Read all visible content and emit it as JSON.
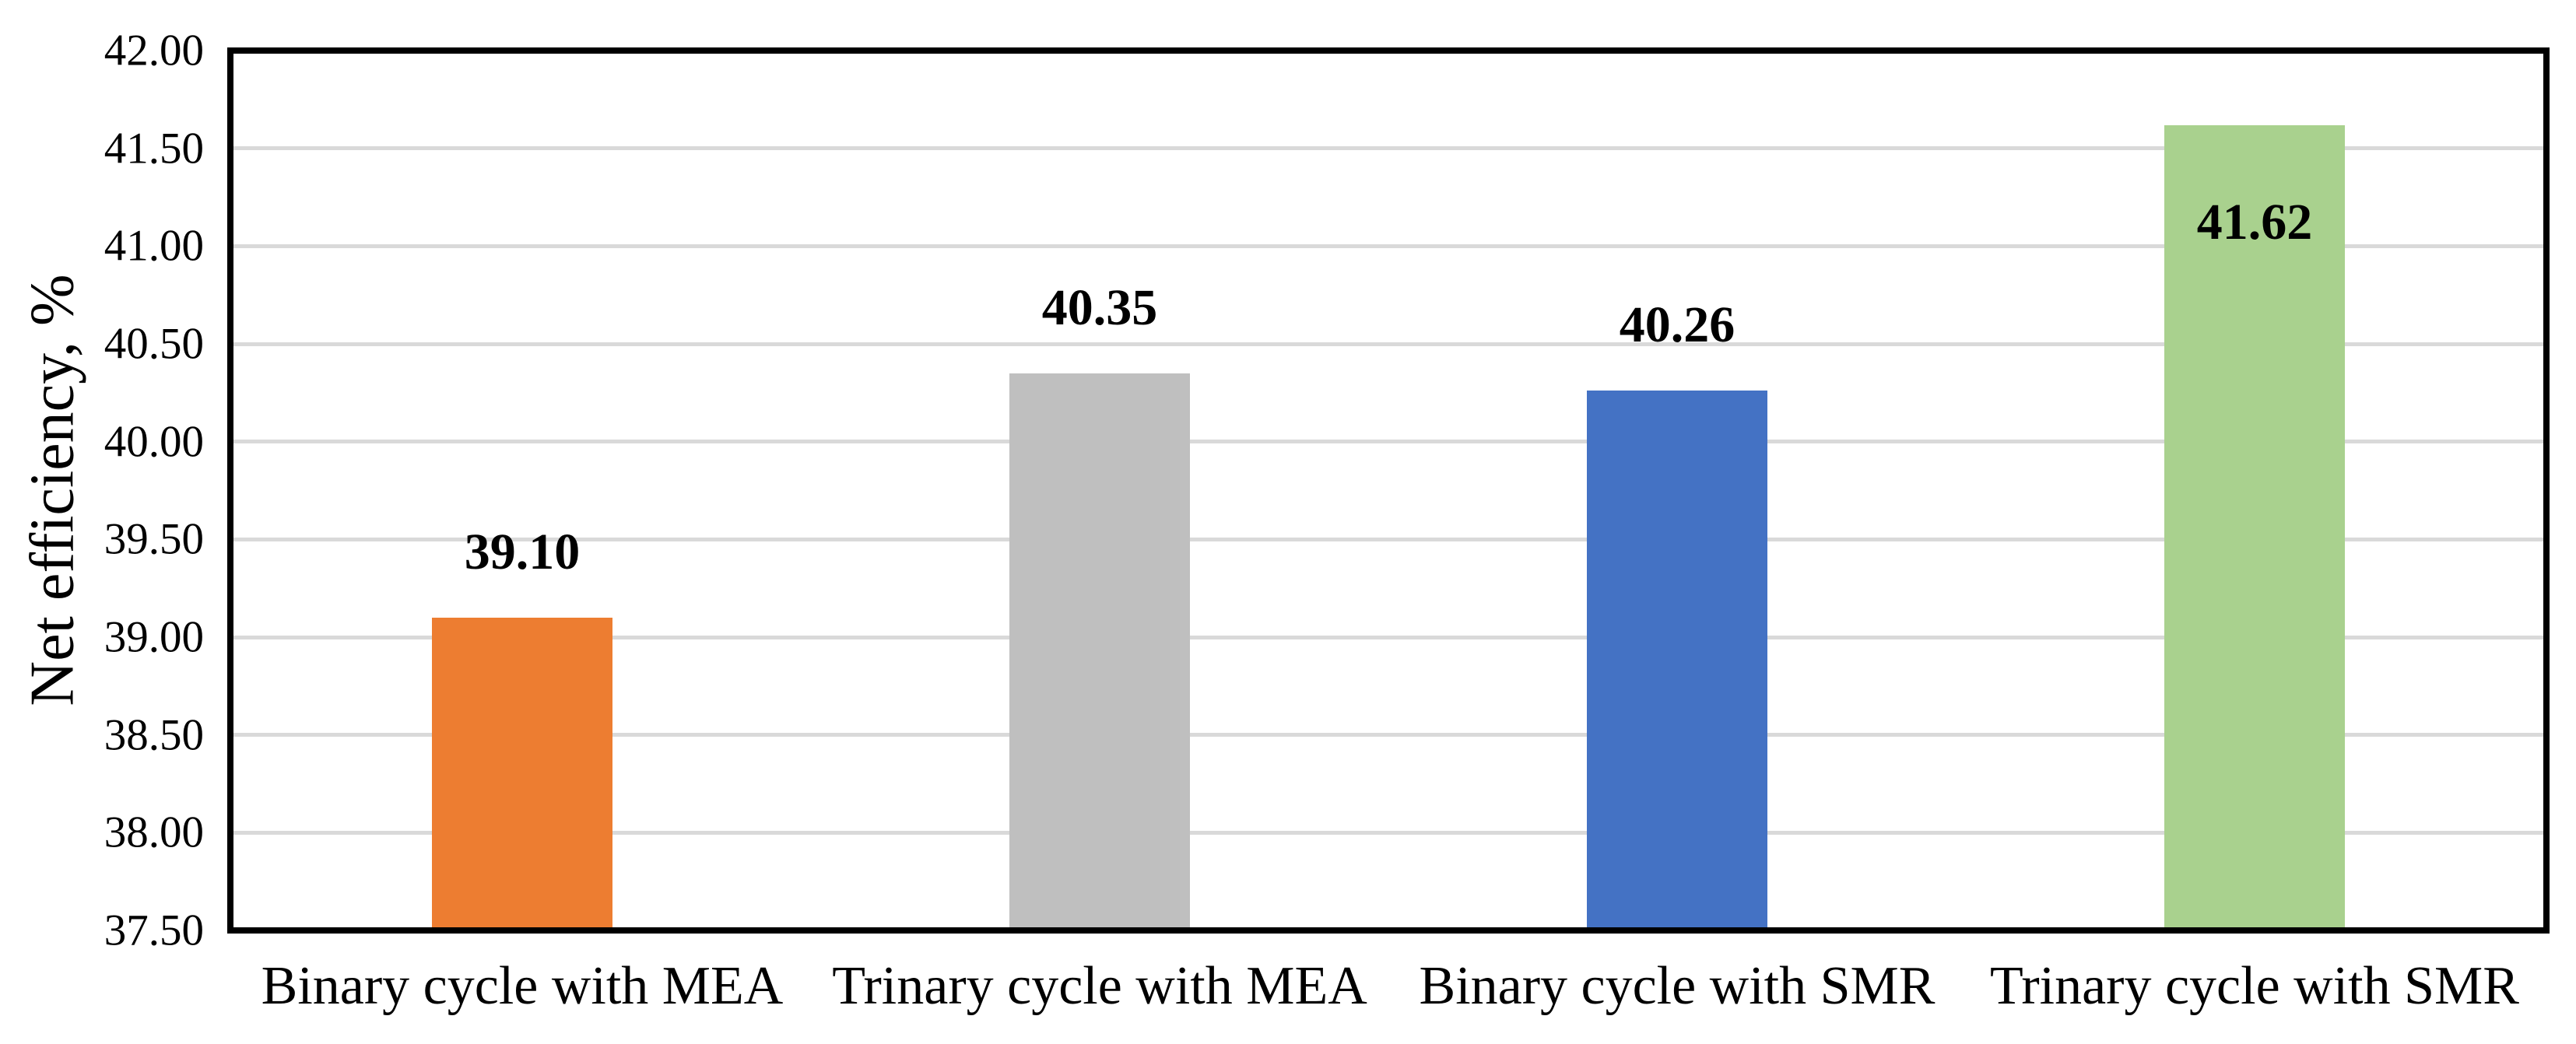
{
  "chart_data": {
    "type": "bar",
    "title": "",
    "xlabel": "",
    "ylabel": "Net efficiency, %",
    "categories": [
      "Binary cycle with MEA",
      "Trinary cycle with MEA",
      "Binary cycle with SMR",
      "Trinary cycle with SMR"
    ],
    "values": [
      39.1,
      40.35,
      40.26,
      41.62
    ],
    "value_labels": [
      "39.10",
      "40.35",
      "40.26",
      "41.62"
    ],
    "value_label_positions": [
      "outside",
      "outside",
      "outside",
      "inside"
    ],
    "bar_colors": [
      "#ED7D31",
      "#BFBFBF",
      "#4472C4",
      "#A9D18E"
    ],
    "ylim": [
      37.5,
      42.0
    ],
    "ytick_labels": [
      "37.50",
      "38.00",
      "38.50",
      "39.00",
      "39.50",
      "40.00",
      "40.50",
      "41.00",
      "41.50",
      "42.00"
    ],
    "grid": "horizontal",
    "legend": "none",
    "colors": {
      "gridline": "#D9D9D9",
      "axis_border": "#000000",
      "text": "#000000",
      "background": "#FFFFFF"
    }
  }
}
